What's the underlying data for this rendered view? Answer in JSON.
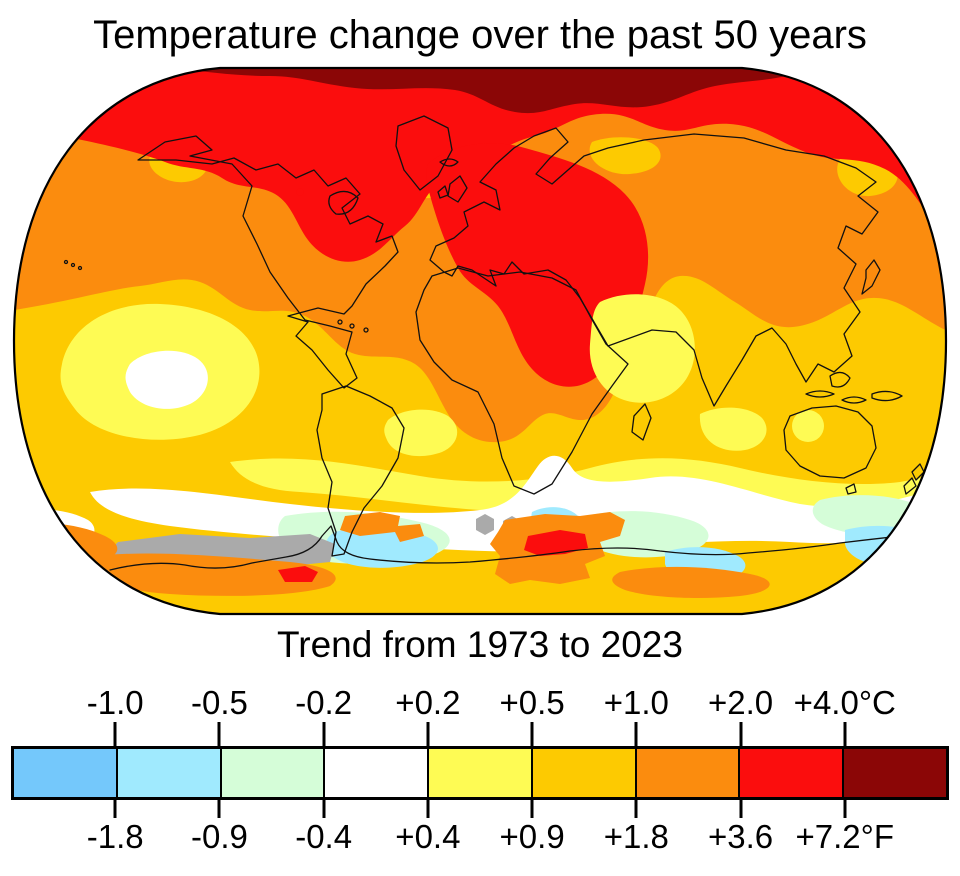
{
  "title": "Temperature change over the past 50 years",
  "subtitle": "Trend from 1973 to 2023",
  "legend": {
    "celsius_labels": [
      "-1.0",
      "-0.5",
      "-0.2",
      "+0.2",
      "+0.5",
      "+1.0",
      "+2.0",
      "+4.0°C"
    ],
    "fahrenheit_labels": [
      "-1.8",
      "-0.9",
      "-0.4",
      "+0.4",
      "+0.9",
      "+1.8",
      "+3.6",
      "+7.2°F"
    ],
    "segment_colors": [
      "#74C8FB",
      "#A0EAFE",
      "#D5FDD8",
      "#FFFFFF",
      "#FEFB54",
      "#FDCA01",
      "#FB8C0E",
      "#FB0D0D",
      "#8B0606"
    ],
    "no_data_color": "#AAAAAA",
    "outline_color": "#000000"
  }
}
